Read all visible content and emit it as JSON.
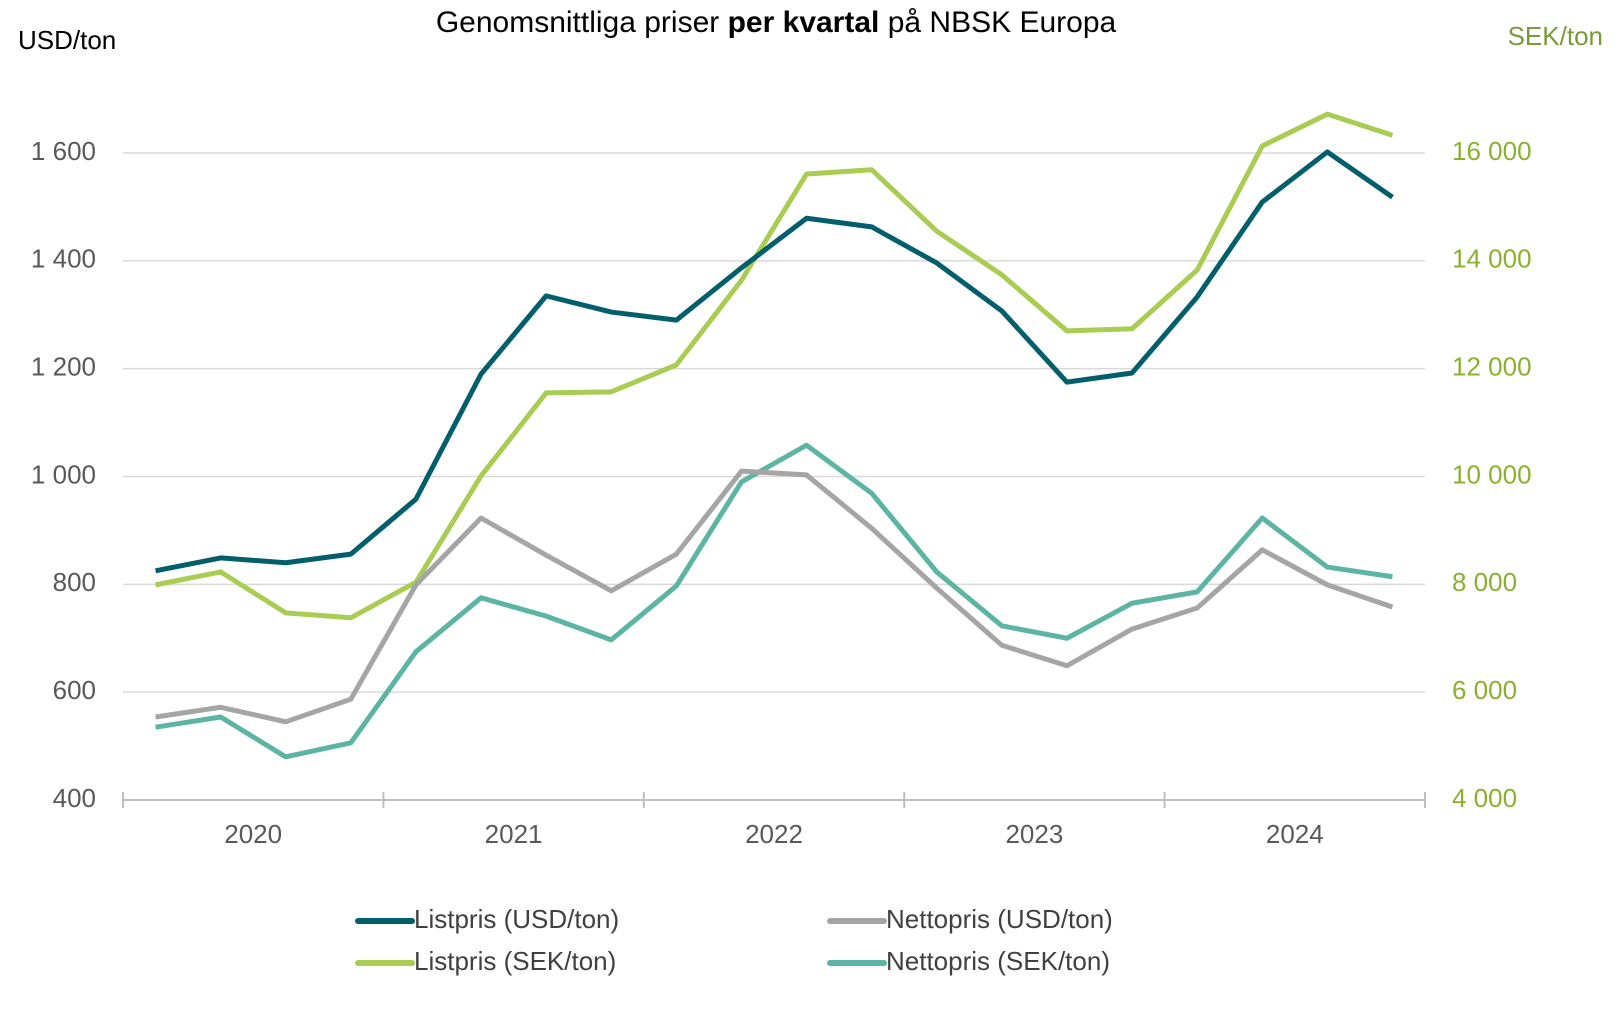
{
  "chart_data": {
    "type": "line",
    "title_parts": [
      {
        "text": "Genomsnittliga priser ",
        "bold": false
      },
      {
        "text": "per kvartal",
        "bold": true
      },
      {
        "text": " på NBSK Europa",
        "bold": false
      }
    ],
    "y_label": "USD/ton",
    "y2_label": "SEK/ton",
    "categories": [
      null,
      null,
      null,
      null,
      null,
      null,
      null,
      null,
      null,
      null,
      null,
      null,
      null,
      null,
      null,
      null,
      null,
      null,
      null,
      null
    ],
    "groups": [
      "2020",
      "2021",
      "2022",
      "2023",
      "2024"
    ],
    "ylim": [
      400,
      1600
    ],
    "yticks": [
      400,
      600,
      800,
      {
        "value": 1000,
        "label": "1 000"
      },
      {
        "value": 1200,
        "label": "1 200"
      },
      {
        "value": 1400,
        "label": "1 400"
      },
      {
        "value": 1600,
        "label": "1 600"
      }
    ],
    "y2lim": [
      4000,
      16000
    ],
    "y2ticks": [
      {
        "value": 4000,
        "label": "4 000"
      },
      {
        "value": 6000,
        "label": "6 000"
      },
      {
        "value": 8000,
        "label": "8 000"
      },
      {
        "value": 10000,
        "label": "10 000"
      },
      {
        "value": 12000,
        "label": "12 000"
      },
      {
        "value": 14000,
        "label": "14 000"
      },
      {
        "value": 16000,
        "label": "16 000"
      }
    ],
    "grid": true,
    "legend": "bottom",
    "series": [
      {
        "name": "Listpris (USD/ton)",
        "color": "#005f6b",
        "values": [
          825,
          849,
          840,
          856,
          958,
          1190,
          1335,
          1305,
          1290,
          1387,
          1479,
          1463,
          1396,
          1307,
          1175,
          1192,
          1333,
          1509,
          1602,
          1518
        ]
      },
      {
        "name": "Nettopris (USD/ton)",
        "color": "#a5a5a5",
        "values": [
          554,
          572,
          545,
          587,
          799,
          923,
          854,
          788,
          856,
          1010,
          1003,
          904,
          793,
          687,
          649,
          717,
          756,
          864,
          799,
          758
        ]
      },
      {
        "name": "Listpris (SEK/ton)",
        "color": "#a9cc52",
        "axis": "y2",
        "values": [
          7990,
          8230,
          7470,
          7380,
          8040,
          10010,
          11550,
          11570,
          12070,
          13640,
          15610,
          15690,
          14550,
          13740,
          12700,
          12740,
          13830,
          16130,
          16720,
          16330
        ]
      },
      {
        "name": "Nettopris (SEK/ton)",
        "color": "#5bb5a2",
        "axis": "y2",
        "values": [
          5350,
          5540,
          4800,
          5060,
          6750,
          7750,
          7410,
          6970,
          7970,
          9900,
          10580,
          9690,
          8230,
          7230,
          7000,
          7650,
          7860,
          9230,
          8320,
          8140
        ]
      }
    ]
  }
}
